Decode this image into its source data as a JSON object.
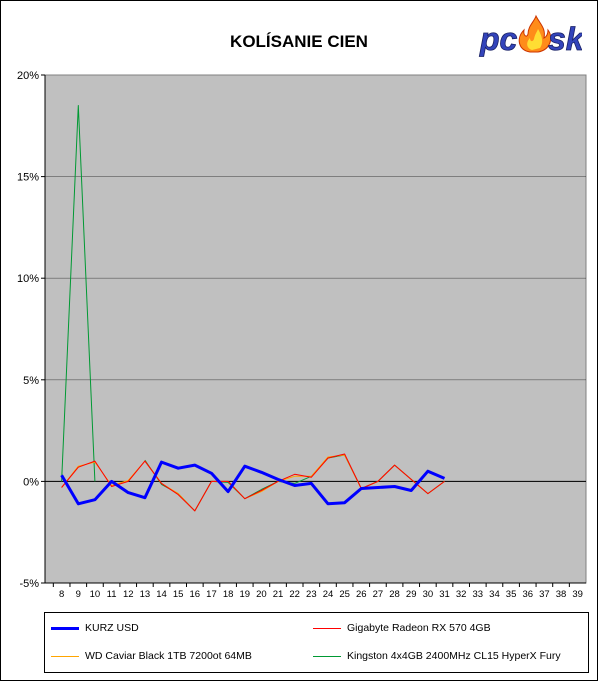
{
  "chart_data": {
    "type": "line",
    "title": "KOLÍSANIE CIEN",
    "x": [
      8,
      9,
      10,
      11,
      12,
      13,
      14,
      15,
      16,
      17,
      18,
      19,
      20,
      21,
      22,
      23,
      24,
      25,
      26,
      27,
      28,
      29,
      30,
      31,
      32,
      33,
      34,
      35,
      36,
      37,
      38,
      39
    ],
    "ylim": [
      -5,
      20
    ],
    "yticks": [
      -5,
      0,
      5,
      10,
      15,
      20
    ],
    "ytick_labels": [
      "-5%",
      "0%",
      "5%",
      "10%",
      "15%",
      "20%"
    ],
    "grid": true,
    "legend_position": "bottom",
    "plot_background": "#c0c0c0",
    "series": [
      {
        "name": "KURZ USD",
        "color": "#0000ff",
        "width": 3,
        "x": [
          8,
          9,
          10,
          11,
          12,
          13,
          14,
          15,
          16,
          17,
          18,
          19,
          20,
          21,
          22,
          23,
          24,
          25,
          26,
          27,
          28,
          29,
          30,
          31
        ],
        "values": [
          0.3,
          -1.1,
          -0.9,
          0.0,
          -0.55,
          -0.8,
          0.95,
          0.65,
          0.8,
          0.4,
          -0.5,
          0.75,
          0.45,
          0.1,
          -0.2,
          -0.1,
          -1.1,
          -1.05,
          -0.35,
          -0.3,
          -0.25,
          -0.45,
          0.5,
          0.15
        ]
      },
      {
        "name": "Gigabyte Radeon RX 570 4GB",
        "color": "#ff0000",
        "width": 1,
        "x": [
          8,
          9,
          10,
          11,
          12,
          13,
          14,
          15,
          16,
          17,
          18,
          19,
          20,
          21,
          22,
          23,
          24,
          25,
          26,
          27,
          28,
          29,
          30,
          31
        ],
        "values": [
          -0.3,
          0.7,
          1.0,
          -0.25,
          0.0,
          1.0,
          -0.1,
          -0.65,
          -1.45,
          0.0,
          0.0,
          -0.85,
          -0.45,
          0.0,
          0.35,
          0.2,
          1.15,
          1.35,
          -0.35,
          0.0,
          0.8,
          0.1,
          -0.6,
          0.0
        ]
      },
      {
        "name": "WD Caviar Black 1TB 7200ot 64MB",
        "color": "#ffa500",
        "width": 1,
        "x": [
          8,
          9,
          10,
          11,
          12,
          13,
          14,
          15,
          16,
          17,
          18,
          19,
          20,
          21,
          22,
          23,
          24,
          25,
          26,
          27,
          28,
          29,
          30,
          31
        ],
        "values": [
          -0.3,
          0.75,
          0.95,
          -0.2,
          0.05,
          1.0,
          -0.1,
          -0.6,
          -1.45,
          0.0,
          0.0,
          -0.85,
          -0.5,
          0.0,
          0.25,
          0.25,
          1.2,
          1.3,
          -0.35,
          0.0,
          0.8,
          0.1,
          -0.6,
          0.0
        ]
      },
      {
        "name": "Kingston 4x4GB 2400MHz CL15 HyperX Fury",
        "color": "#009933",
        "width": 1,
        "x": [
          8,
          9,
          10,
          11,
          12,
          13,
          14,
          15,
          16,
          17,
          18,
          19,
          20,
          21,
          22,
          23,
          24,
          25,
          26,
          27,
          28,
          29,
          30,
          31
        ],
        "values": [
          0.0,
          18.5,
          0.0,
          null,
          null,
          1.05,
          -0.15,
          -0.6,
          -1.45,
          0.0,
          -0.05,
          -0.85,
          -0.4,
          0.0,
          -0.1,
          0.25,
          1.15,
          1.3,
          -0.35,
          0.0,
          0.8,
          0.1,
          -0.6,
          0.0
        ]
      }
    ]
  },
  "logo": {
    "text": "pcesk",
    "letters": [
      "pc",
      "e",
      "sk"
    ]
  }
}
